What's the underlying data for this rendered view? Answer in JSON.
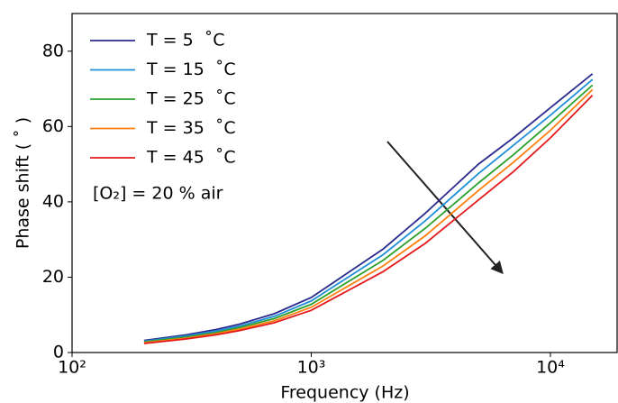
{
  "chart_data": {
    "type": "line",
    "xlabel": "Frequency (Hz)",
    "ylabel": "Phase shift ( ˚ )",
    "annotation": "[O₂] = 20 % air",
    "log_x": true,
    "legend": "upper left",
    "x": [
      200,
      300,
      400,
      500,
      700,
      1000,
      2000,
      3000,
      5000,
      7000,
      10000,
      15000
    ],
    "series": [
      {
        "name": "T = 5  ˚C",
        "color": "#2b2b8f",
        "values": [
          3.2,
          4.7,
          6.1,
          7.5,
          10.3,
          14.6,
          27.5,
          37,
          50,
          57,
          65,
          74
        ]
      },
      {
        "name": "T = 15  ˚C",
        "color": "#1f8fd8",
        "values": [
          3.0,
          4.4,
          5.7,
          7.0,
          9.6,
          13.7,
          26,
          35,
          47.5,
          55,
          63,
          72.5
        ]
      },
      {
        "name": "T = 25  ˚C",
        "color": "#2ca02c",
        "values": [
          2.8,
          4.1,
          5.3,
          6.6,
          9.0,
          12.8,
          24.5,
          33,
          45,
          52.5,
          61,
          71
        ]
      },
      {
        "name": "T = 35  ˚C",
        "color": "#ff7f0e",
        "values": [
          2.6,
          3.8,
          5.0,
          6.2,
          8.4,
          12.0,
          23,
          31,
          43,
          50.5,
          59,
          69.8
        ]
      },
      {
        "name": "T = 45  ˚C",
        "color": "#e31a1c",
        "values": [
          2.4,
          3.6,
          4.7,
          5.8,
          7.9,
          11.2,
          21.5,
          29,
          40.5,
          48,
          57,
          68.3
        ]
      }
    ],
    "xlim": [
      100,
      19000
    ],
    "xticks": [
      {
        "value": 100,
        "label": "10²"
      },
      {
        "value": 1000,
        "label": "10³"
      },
      {
        "value": 10000,
        "label": "10⁴"
      }
    ],
    "ylim": [
      0,
      90
    ],
    "yticks": [
      0,
      20,
      40,
      60,
      80
    ]
  }
}
